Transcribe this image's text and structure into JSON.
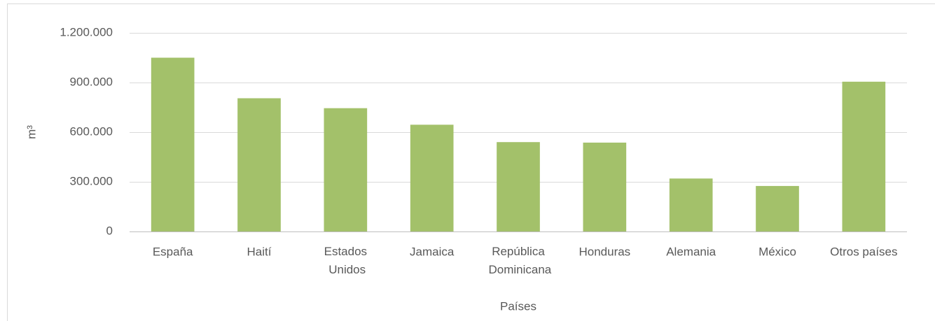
{
  "chart_data": {
    "type": "bar",
    "categories": [
      "España",
      "Haití",
      "Estados Unidos",
      "Jamaica",
      "República Dominicana",
      "Honduras",
      "Alemania",
      "México",
      "Otros países"
    ],
    "values": [
      1050000,
      805000,
      745000,
      645000,
      540000,
      537000,
      320000,
      275000,
      905000
    ],
    "color": "#a3c16a",
    "ylim": [
      0,
      1200000
    ],
    "yticks": [
      0,
      {
        "value": 300000,
        "label": "300.000"
      },
      {
        "value": 600000,
        "label": "600.000"
      },
      {
        "value": 900000,
        "label": "900.000"
      },
      {
        "value": 1200000,
        "label": "1.200.000"
      }
    ],
    "grid": true,
    "y_label": "m³",
    "x_label": "Países"
  }
}
